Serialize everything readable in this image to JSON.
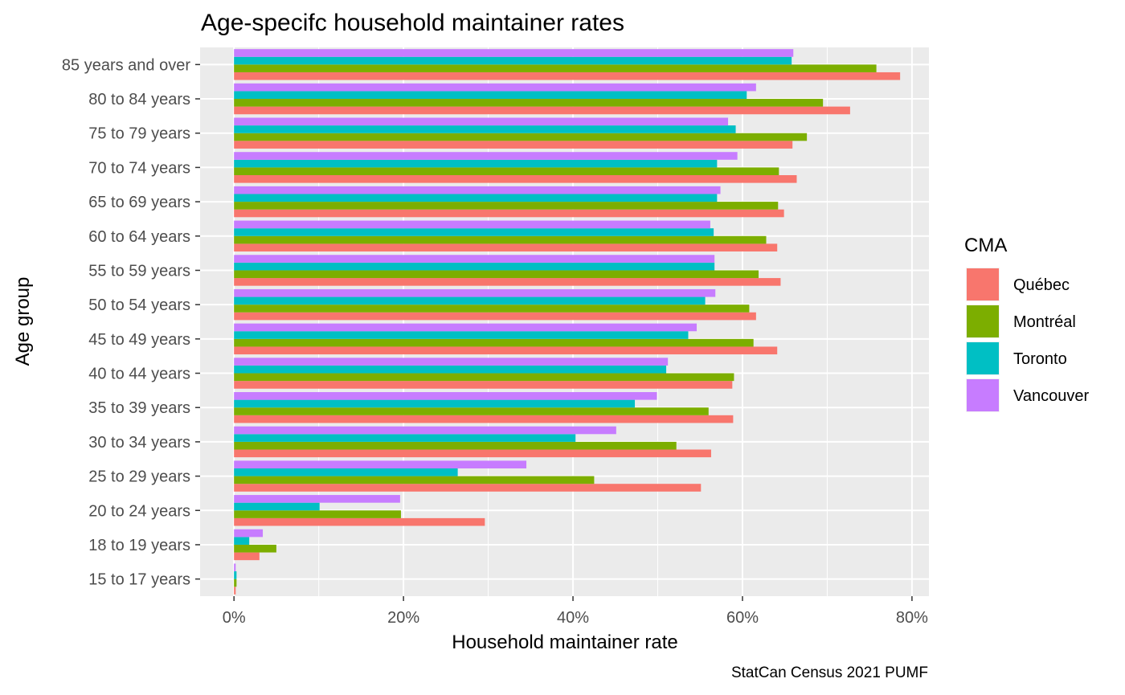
{
  "chart_data": {
    "type": "bar",
    "orientation": "horizontal",
    "title": "Age-specifc household maintainer rates",
    "xlabel": "Household maintainer rate",
    "ylabel": "Age group",
    "caption": "StatCan Census 2021 PUMF",
    "xlim": [
      -0.04,
      0.82
    ],
    "x_ticks": [
      0,
      0.2,
      0.4,
      0.6,
      0.8
    ],
    "x_tick_labels": [
      "0%",
      "20%",
      "40%",
      "60%",
      "80%"
    ],
    "grid": true,
    "legend": {
      "title": "CMA",
      "placement": "right"
    },
    "categories": [
      "15 to 17 years",
      "18 to 19 years",
      "20 to 24 years",
      "25 to 29 years",
      "30 to 34 years",
      "35 to 39 years",
      "40 to 44 years",
      "45 to 49 years",
      "50 to 54 years",
      "55 to 59 years",
      "60 to 64 years",
      "65 to 69 years",
      "70 to 74 years",
      "75 to 79 years",
      "80 to 84 years",
      "85 years and over"
    ],
    "series": [
      {
        "name": "Québec",
        "color": "#F8766D",
        "values": [
          0.002,
          0.03,
          0.296,
          0.551,
          0.563,
          0.589,
          0.588,
          0.641,
          0.616,
          0.645,
          0.641,
          0.649,
          0.664,
          0.659,
          0.727,
          0.786
        ]
      },
      {
        "name": "Montréal",
        "color": "#7CAE00",
        "values": [
          0.003,
          0.05,
          0.197,
          0.425,
          0.522,
          0.56,
          0.59,
          0.613,
          0.608,
          0.619,
          0.628,
          0.642,
          0.643,
          0.676,
          0.695,
          0.758
        ]
      },
      {
        "name": "Toronto",
        "color": "#00BFC4",
        "values": [
          0.003,
          0.018,
          0.101,
          0.264,
          0.403,
          0.473,
          0.51,
          0.536,
          0.556,
          0.567,
          0.566,
          0.57,
          0.57,
          0.592,
          0.605,
          0.658
        ]
      },
      {
        "name": "Vancouver",
        "color": "#C77CFF",
        "values": [
          0.002,
          0.034,
          0.196,
          0.345,
          0.451,
          0.499,
          0.512,
          0.546,
          0.568,
          0.567,
          0.562,
          0.574,
          0.594,
          0.583,
          0.616,
          0.66
        ]
      }
    ]
  }
}
